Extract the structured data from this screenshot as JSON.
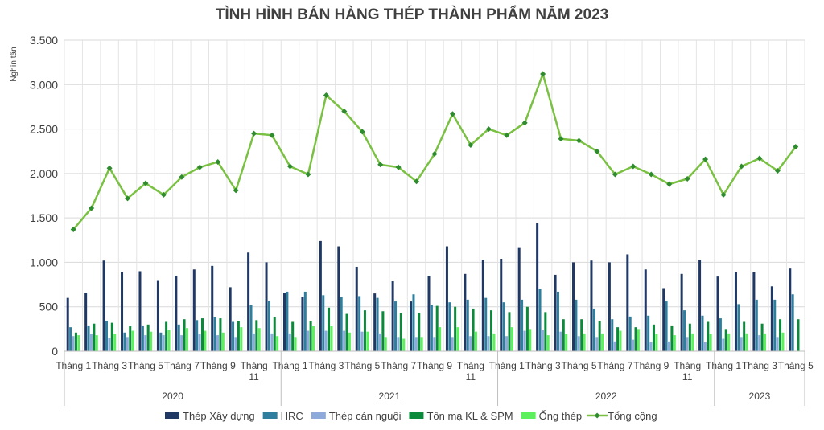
{
  "chart_data": {
    "type": "bar",
    "title": "TÌNH HÌNH BÁN HÀNG THÉP THÀNH PHẨM NĂM 2023",
    "ylabel": "Nghìn tấn",
    "ylim": [
      0,
      3500
    ],
    "yticks": [
      0,
      500,
      1000,
      1500,
      2000,
      2500,
      3000,
      3500
    ],
    "ytick_labels": [
      "0",
      "500",
      "1.000",
      "1.500",
      "2.000",
      "2.500",
      "3.000",
      "3.500"
    ],
    "grid": true,
    "legend_position": "bottom",
    "groups": [
      {
        "year": "2020",
        "count": 12
      },
      {
        "year": "2021",
        "count": 12
      },
      {
        "year": "2022",
        "count": 12
      },
      {
        "year": "2023",
        "count": 5
      }
    ],
    "month_labels": [
      "Tháng 1",
      "Tháng 2",
      "Tháng 3",
      "Tháng 4",
      "Tháng 5",
      "Tháng 6",
      "Tháng 7",
      "Tháng 8",
      "Tháng 9",
      "Tháng 10",
      "Tháng 11",
      "Tháng 12"
    ],
    "series": [
      {
        "name": "Thép Xây dựng",
        "kind": "bar",
        "color": "#1f3864",
        "values": [
          600,
          660,
          1020,
          890,
          900,
          800,
          850,
          920,
          960,
          720,
          1110,
          1000,
          660,
          610,
          1240,
          1180,
          950,
          650,
          790,
          560,
          850,
          1180,
          870,
          1030,
          1040,
          1170,
          1440,
          860,
          1000,
          1020,
          1000,
          1090,
          920,
          710,
          870,
          1030,
          840,
          890,
          890,
          730,
          930
        ]
      },
      {
        "name": "HRC",
        "kind": "bar",
        "color": "#2e7f9e",
        "values": [
          270,
          290,
          340,
          210,
          290,
          210,
          300,
          350,
          380,
          330,
          520,
          570,
          670,
          670,
          630,
          610,
          620,
          600,
          560,
          640,
          520,
          550,
          580,
          600,
          550,
          580,
          700,
          670,
          580,
          480,
          360,
          390,
          400,
          560,
          460,
          400,
          370,
          530,
          580,
          580,
          640
        ]
      },
      {
        "name": "Thép cán nguội",
        "kind": "bar",
        "color": "#8eaadb",
        "values": [
          170,
          190,
          150,
          160,
          180,
          180,
          180,
          190,
          180,
          160,
          200,
          200,
          200,
          230,
          230,
          230,
          220,
          200,
          160,
          160,
          160,
          160,
          170,
          170,
          170,
          230,
          240,
          220,
          170,
          160,
          110,
          130,
          100,
          110,
          160,
          100,
          140,
          160,
          180,
          160,
          0
        ]
      },
      {
        "name": "Tôn mạ KL & SPM",
        "kind": "bar",
        "color": "#0a8a3a",
        "values": [
          210,
          310,
          320,
          280,
          300,
          330,
          360,
          370,
          370,
          340,
          350,
          380,
          330,
          340,
          490,
          420,
          460,
          450,
          430,
          430,
          510,
          500,
          480,
          460,
          440,
          500,
          440,
          360,
          360,
          340,
          270,
          270,
          300,
          290,
          310,
          330,
          250,
          330,
          310,
          360,
          360
        ]
      },
      {
        "name": "Ống thép",
        "kind": "bar",
        "color": "#5cf05c",
        "values": [
          180,
          180,
          190,
          230,
          220,
          240,
          260,
          230,
          210,
          270,
          260,
          170,
          160,
          280,
          280,
          210,
          220,
          160,
          140,
          160,
          270,
          270,
          220,
          200,
          270,
          250,
          180,
          190,
          200,
          200,
          230,
          250,
          190,
          180,
          200,
          190,
          200,
          200,
          200,
          210,
          0
        ]
      },
      {
        "name": "Tổng cộng",
        "kind": "line",
        "color": "#7ac143",
        "marker_color": "#2e8b2e",
        "values": [
          1370,
          1610,
          2060,
          1720,
          1890,
          1760,
          1960,
          2070,
          2130,
          1810,
          2450,
          2430,
          2080,
          1990,
          2880,
          2700,
          2470,
          2100,
          2070,
          1910,
          2220,
          2670,
          2320,
          2500,
          2430,
          2570,
          3120,
          2390,
          2370,
          2250,
          1990,
          2080,
          1990,
          1880,
          1940,
          2160,
          1760,
          2080,
          2170,
          2030,
          2300
        ]
      }
    ]
  }
}
